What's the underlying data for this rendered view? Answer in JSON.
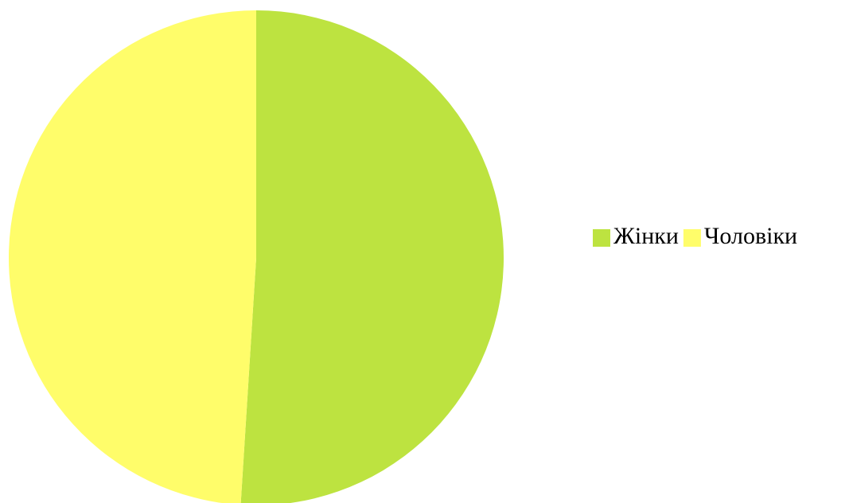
{
  "chart_data": {
    "type": "pie",
    "categories": [
      "Жінки",
      "Чоловіки"
    ],
    "values": [
      51,
      49
    ],
    "colors": [
      "#bde340",
      "#fffd6a"
    ],
    "legend": "right"
  }
}
